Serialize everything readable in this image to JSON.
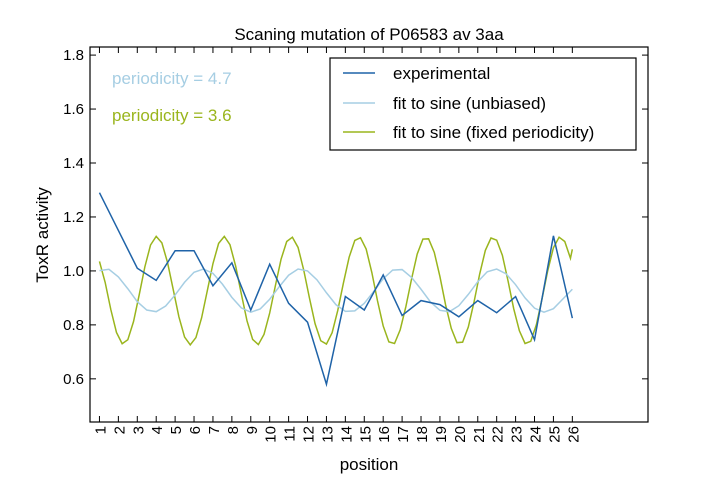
{
  "chart_data": {
    "type": "line",
    "title": "Scaning mutation of P06583 av 3aa",
    "xlabel": "position",
    "ylabel": "ToxR activity",
    "xlim": [
      0.5,
      30
    ],
    "ylim": [
      0.44,
      1.83
    ],
    "x_ticks": [
      1,
      2,
      3,
      4,
      5,
      6,
      7,
      8,
      9,
      10,
      11,
      12,
      13,
      14,
      15,
      16,
      17,
      18,
      19,
      20,
      21,
      22,
      23,
      24,
      25,
      26
    ],
    "x_tick_labels": [
      "1",
      "2",
      "3",
      "4",
      "5",
      "6",
      "7",
      "8",
      "9",
      "10",
      "11",
      "12",
      "13",
      "14",
      "15",
      "16",
      "17",
      "18",
      "19",
      "20",
      "21",
      "22",
      "23",
      "24",
      "25",
      "26"
    ],
    "y_ticks": [
      0.6,
      0.8,
      1.0,
      1.2,
      1.4,
      1.6,
      1.8
    ],
    "y_tick_labels": [
      "0.6",
      "0.8",
      "1.0",
      "1.2",
      "1.4",
      "1.6",
      "1.8"
    ],
    "grid": false,
    "legend_position": "top-right",
    "annotations": [
      {
        "text": "periodicity = 4.7",
        "color": "#a6cee3"
      },
      {
        "text": "periodicity = 3.6",
        "color": "#9ab51d"
      }
    ],
    "series": [
      {
        "name": "experimental",
        "color": "#1f63a8",
        "x": [
          1,
          2,
          3,
          4,
          5,
          6,
          7,
          8,
          9,
          10,
          11,
          12,
          13,
          14,
          15,
          16,
          17,
          18,
          19,
          20,
          21,
          22,
          23,
          24,
          25,
          26
        ],
        "y": [
          1.29,
          1.15,
          1.01,
          0.965,
          1.075,
          1.075,
          0.945,
          1.03,
          0.855,
          1.025,
          0.88,
          0.81,
          0.58,
          0.905,
          0.855,
          0.985,
          0.835,
          0.89,
          0.875,
          0.83,
          0.89,
          0.845,
          0.905,
          0.745,
          1.13,
          0.825
        ]
      },
      {
        "name": "fit to sine (unbiased)",
        "color": "#a6cee3",
        "x": [
          1,
          1.5,
          2,
          2.5,
          3,
          3.5,
          4,
          4.5,
          5,
          5.5,
          6,
          6.5,
          7,
          7.5,
          8,
          8.5,
          9,
          9.5,
          10,
          10.5,
          11,
          11.5,
          12,
          12.5,
          13,
          13.5,
          14,
          14.5,
          15,
          15.5,
          16,
          16.5,
          17,
          17.5,
          18,
          18.5,
          19,
          19.5,
          20,
          20.5,
          21,
          21.5,
          22,
          22.5,
          23,
          23.5,
          24,
          24.5,
          25,
          25.5,
          26
        ],
        "y": [
          1.001,
          1.006,
          0.978,
          0.934,
          0.886,
          0.855,
          0.849,
          0.87,
          0.911,
          0.958,
          0.995,
          1.007,
          0.991,
          0.951,
          0.902,
          0.863,
          0.847,
          0.859,
          0.895,
          0.941,
          0.984,
          1.007,
          1.0,
          0.967,
          0.919,
          0.875,
          0.85,
          0.852,
          0.88,
          0.924,
          0.971,
          1.003,
          1.005,
          0.976,
          0.932,
          0.885,
          0.854,
          0.849,
          0.871,
          0.913,
          0.96,
          0.997,
          1.007,
          0.989,
          0.949,
          0.9,
          0.862,
          0.847,
          0.86,
          0.896,
          0.932
        ]
      },
      {
        "name": "fit to sine (fixed periodicity)",
        "color": "#9ab51d",
        "x": [
          1,
          1.3,
          1.6,
          1.9,
          2.2,
          2.5,
          2.8,
          3.1,
          3.4,
          3.7,
          4,
          4.3,
          4.6,
          4.9,
          5.2,
          5.5,
          5.8,
          6.1,
          6.4,
          6.7,
          7,
          7.3,
          7.6,
          7.9,
          8.2,
          8.5,
          8.8,
          9.1,
          9.4,
          9.7,
          10,
          10.3,
          10.6,
          10.9,
          11.2,
          11.5,
          11.8,
          12.1,
          12.4,
          12.7,
          13,
          13.3,
          13.6,
          13.9,
          14.2,
          14.5,
          14.8,
          15.1,
          15.4,
          15.7,
          16,
          16.3,
          16.6,
          16.9,
          17.2,
          17.5,
          17.8,
          18.1,
          18.4,
          18.7,
          19,
          19.3,
          19.6,
          19.9,
          20.2,
          20.5,
          20.8,
          21.1,
          21.4,
          21.7,
          22,
          22.3,
          22.6,
          22.9,
          23.2,
          23.5,
          23.8,
          24.1,
          24.4,
          24.7,
          25,
          25.3,
          25.6,
          25.9,
          26
        ],
        "y": [
          1.035,
          0.958,
          0.857,
          0.772,
          0.73,
          0.745,
          0.812,
          0.911,
          1.015,
          1.096,
          1.128,
          1.104,
          1.031,
          0.931,
          0.83,
          0.755,
          0.726,
          0.753,
          0.826,
          0.926,
          1.027,
          1.102,
          1.128,
          1.097,
          1.018,
          0.915,
          0.815,
          0.746,
          0.727,
          0.765,
          0.844,
          0.945,
          1.043,
          1.109,
          1.125,
          1.087,
          1.003,
          0.9,
          0.804,
          0.741,
          0.729,
          0.771,
          0.854,
          0.956,
          1.051,
          1.113,
          1.123,
          1.081,
          0.994,
          0.889,
          0.796,
          0.737,
          0.731,
          0.782,
          0.868,
          0.97,
          1.063,
          1.118,
          1.119,
          1.069,
          0.979,
          0.874,
          0.787,
          0.734,
          0.736,
          0.792,
          0.884,
          0.988,
          1.076,
          1.122,
          1.114,
          1.058,
          0.963,
          0.86,
          0.778,
          0.731,
          0.739,
          0.801,
          0.897,
          1.001,
          1.086,
          1.125,
          1.109,
          1.047,
          1.08
        ]
      }
    ]
  }
}
